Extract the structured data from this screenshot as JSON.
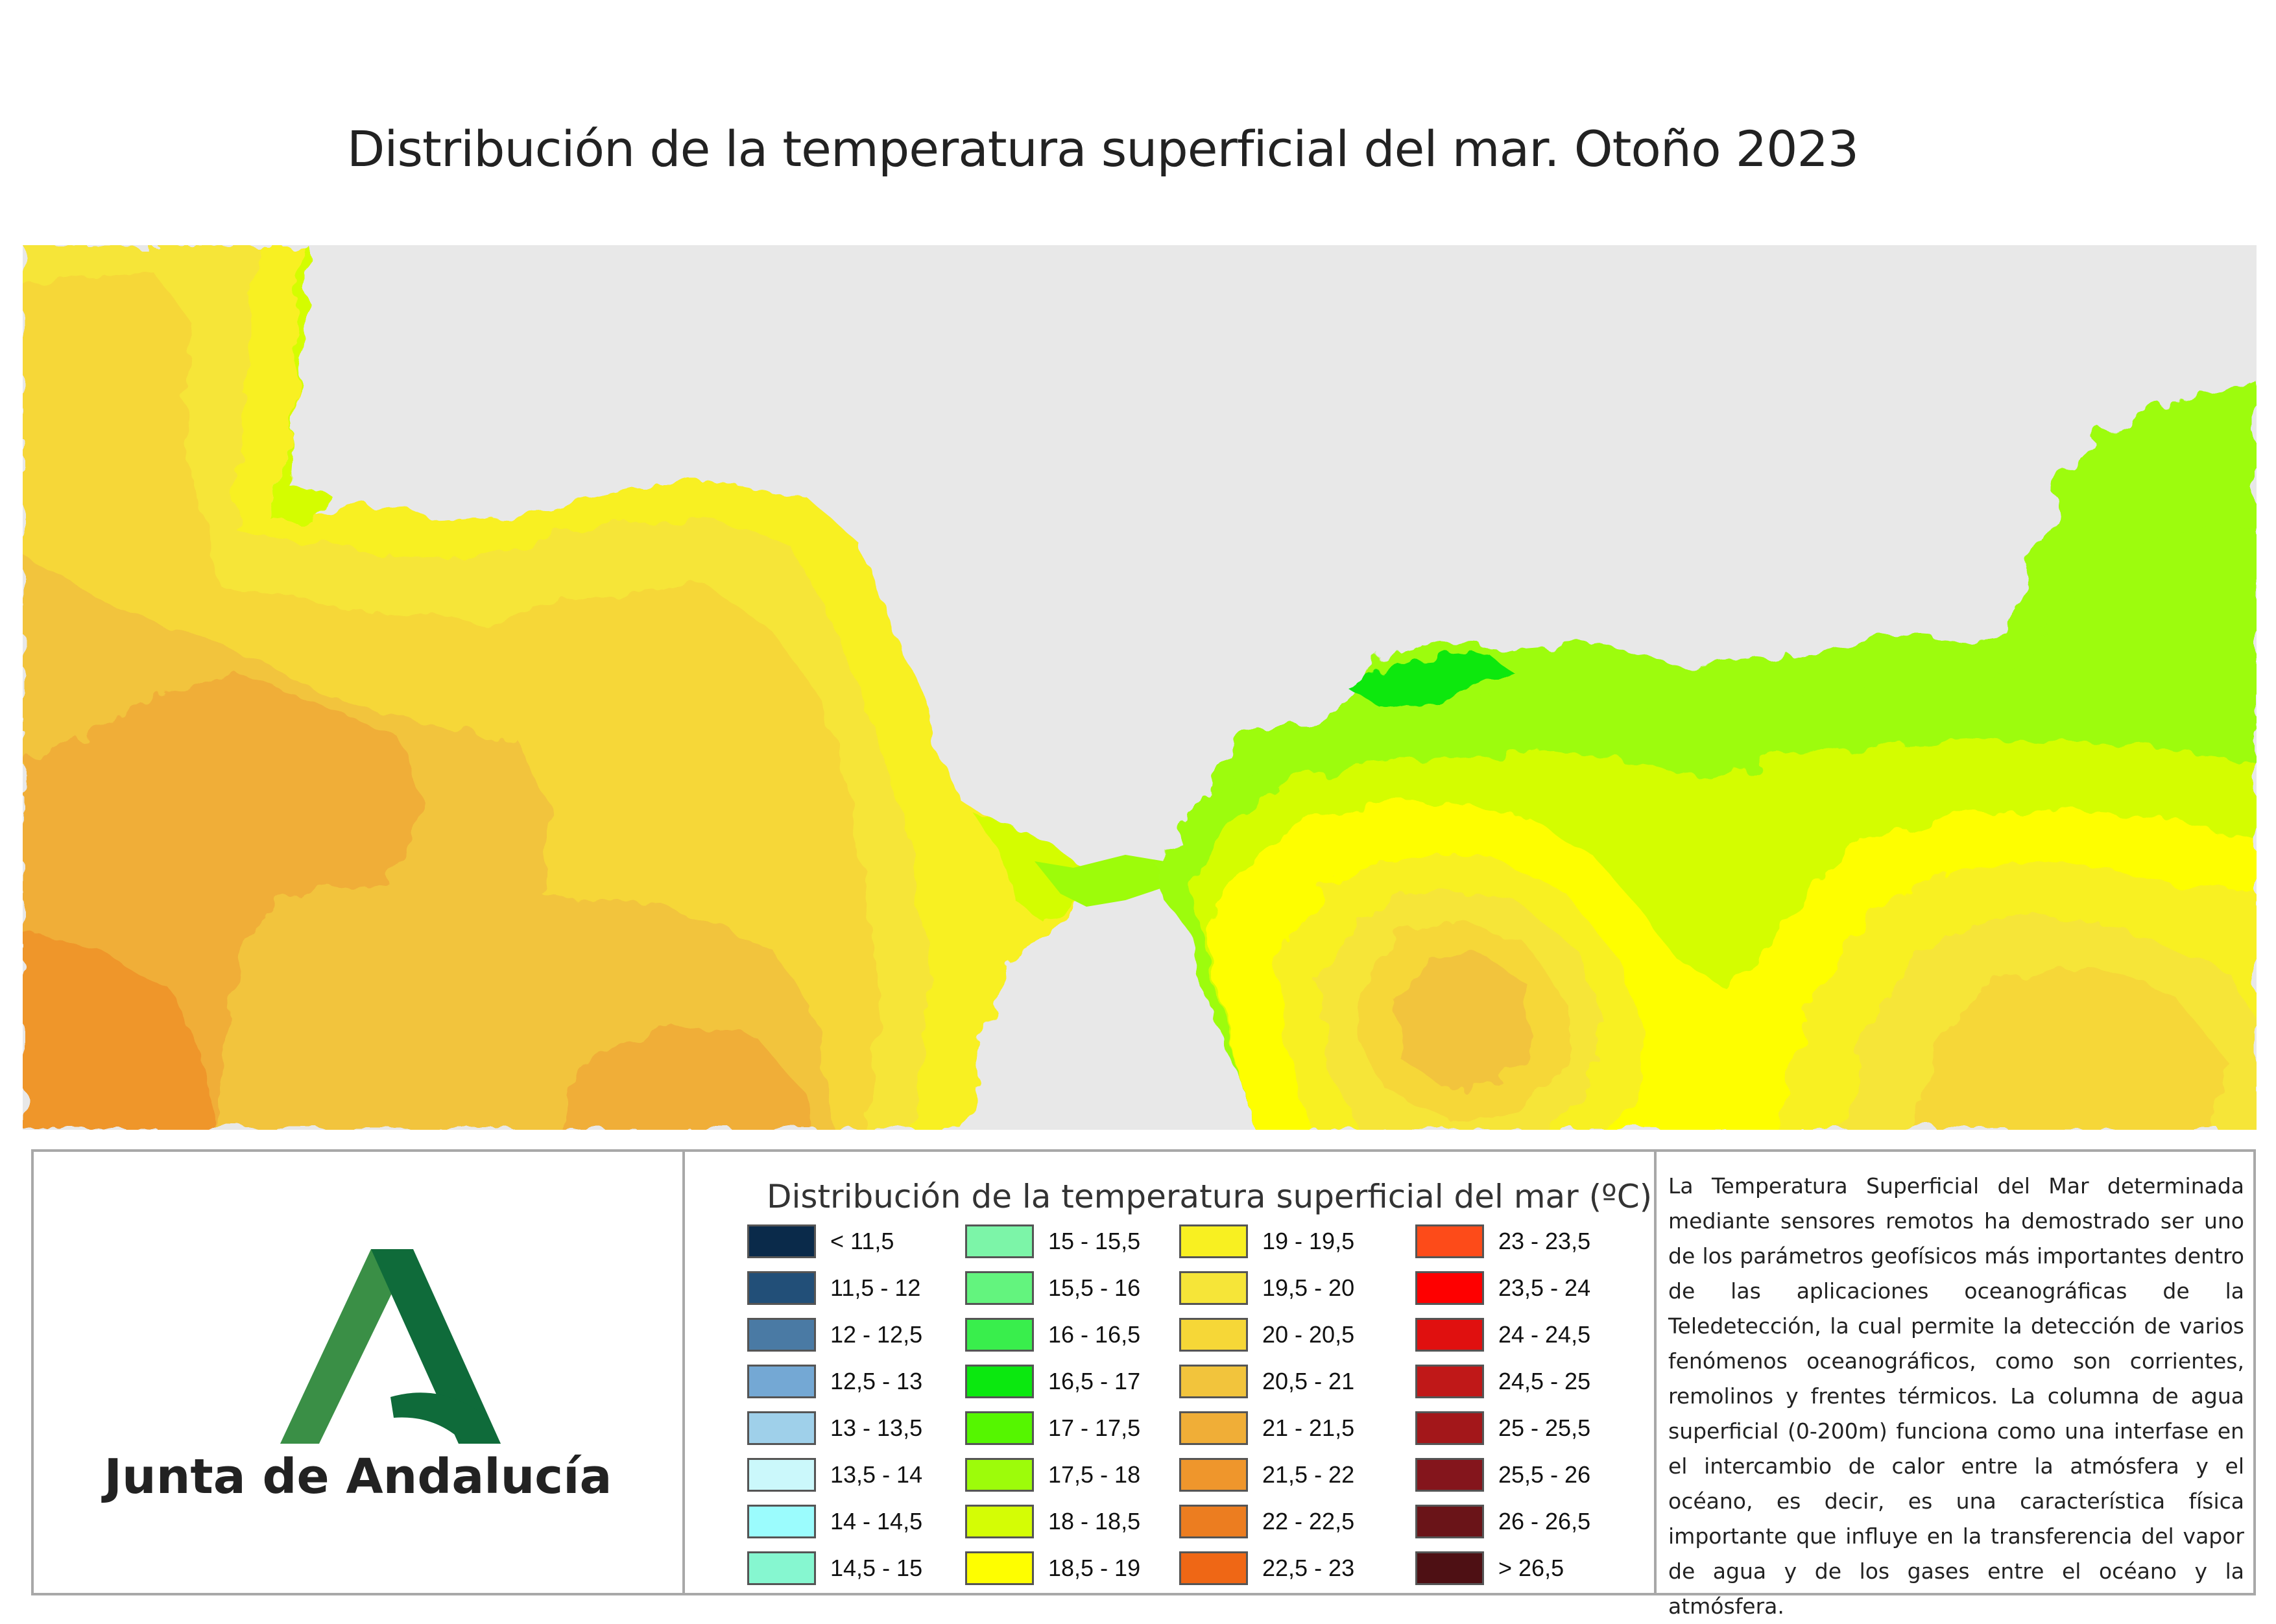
{
  "title": "Distribución de la temperatura superficial del mar. Otoño 2023",
  "colors": {
    "land": "#e8e8e8",
    "logo_light_green": "#3a8f46",
    "logo_dark_green": "#0f6b3a"
  },
  "logo": {
    "text": "Junta de Andalucía",
    "icon": "junta-andalucia-logo-icon"
  },
  "legend": {
    "title": "Distribución de la temperatura superficial del mar  (ºC)",
    "items": [
      {
        "label": "< 11,5",
        "color": "#0a2a4a"
      },
      {
        "label": "11,5 - 12",
        "color": "#224f78"
      },
      {
        "label": "12 - 12,5",
        "color": "#4a7aa4"
      },
      {
        "label": "12,5 - 13",
        "color": "#74a8d4"
      },
      {
        "label": "13 - 13,5",
        "color": "#9fd0ea"
      },
      {
        "label": "13,5 - 14",
        "color": "#cbf8fb"
      },
      {
        "label": "14 - 14,5",
        "color": "#9bfcfd"
      },
      {
        "label": "14,5 - 15",
        "color": "#86f7d0"
      },
      {
        "label": "15 - 15,5",
        "color": "#7cf5a8"
      },
      {
        "label": "15,5 - 16",
        "color": "#63f47e"
      },
      {
        "label": "16 - 16,5",
        "color": "#39ee4c"
      },
      {
        "label": "16,5 - 17",
        "color": "#0be80f"
      },
      {
        "label": "17 - 17,5",
        "color": "#55f600"
      },
      {
        "label": "17,5 - 18",
        "color": "#9dfc0a"
      },
      {
        "label": "18 - 18,5",
        "color": "#d4fd05"
      },
      {
        "label": "18,5 - 19",
        "color": "#fefe00"
      },
      {
        "label": "19 - 19,5",
        "color": "#f8f021"
      },
      {
        "label": "19,5 - 20",
        "color": "#f6e538"
      },
      {
        "label": "20 - 20,5",
        "color": "#f6d737"
      },
      {
        "label": "20,5 - 21",
        "color": "#f2c43c"
      },
      {
        "label": "21 - 21,5",
        "color": "#f0ae37"
      },
      {
        "label": "21,5 - 22",
        "color": "#ef962c"
      },
      {
        "label": "22 - 22,5",
        "color": "#ec7d20"
      },
      {
        "label": "22,5 - 23",
        "color": "#ef6715"
      },
      {
        "label": "23 - 23,5",
        "color": "#fd4b19"
      },
      {
        "label": "23,5 - 24",
        "color": "#fe0000"
      },
      {
        "label": "24 - 24,5",
        "color": "#e0100f"
      },
      {
        "label": "24,5 - 25",
        "color": "#c01818"
      },
      {
        "label": "25 - 25,5",
        "color": "#a3171a"
      },
      {
        "label": "25,5 - 26",
        "color": "#84151c"
      },
      {
        "label": "26 - 26,5",
        "color": "#6a1418"
      },
      {
        "label": "> 26,5",
        "color": "#4e1014"
      }
    ]
  },
  "description": "La Temperatura Superficial del Mar determinada mediante sensores remotos ha demostrado ser uno de los parámetros geofísicos más importantes dentro de las aplicaciones oceanográficas de la Teledetección, la cual permite la detección de varios fenómenos oceanográficos, como son corrientes, remolinos y frentes térmicos. La columna de agua superficial (0-200m) funciona como una interfase en el intercambio de calor entre la atmósfera y el océano, es decir, es una característica física importante que influye en la transferencia del vapor de agua y de los gases entre el océano y la atmósfera."
}
